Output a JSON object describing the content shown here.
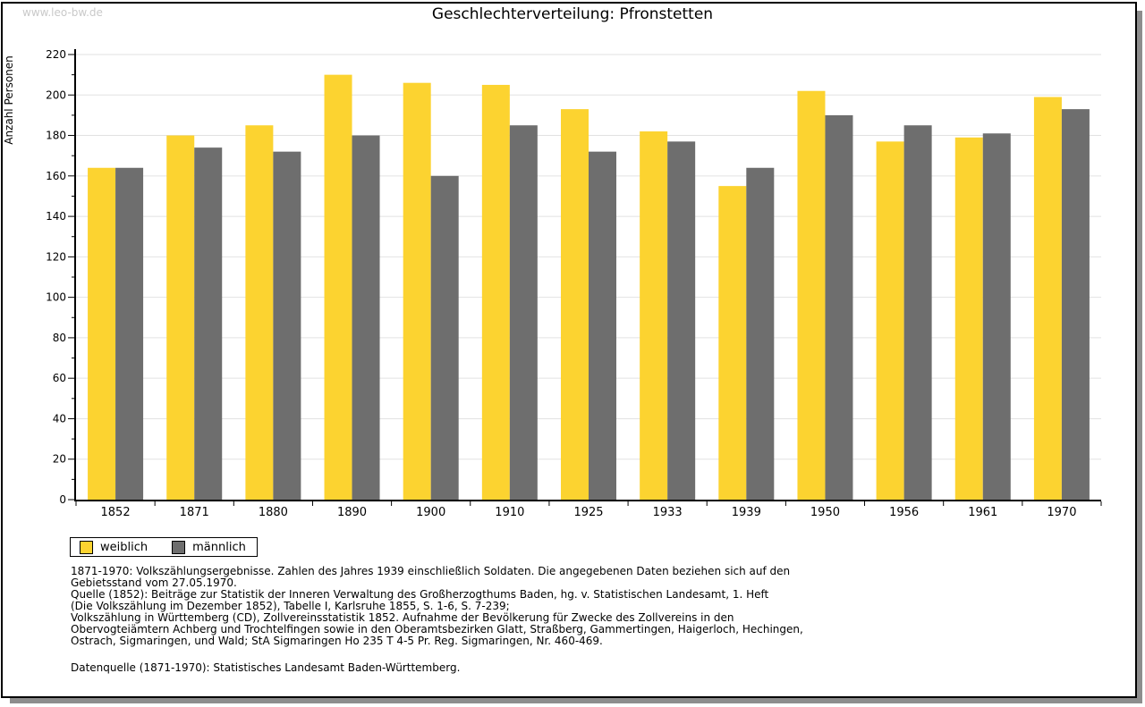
{
  "watermark": "www.leo-bw.de",
  "header": {
    "title": "Geschlechterverteilung: Pfronstetten"
  },
  "chart_data": {
    "type": "bar",
    "title": "Geschlechterverteilung: Pfronstetten",
    "xlabel": "",
    "ylabel": "Anzahl Personen",
    "categories": [
      "1852",
      "1871",
      "1880",
      "1890",
      "1900",
      "1910",
      "1925",
      "1933",
      "1939",
      "1950",
      "1956",
      "1961",
      "1970"
    ],
    "series": [
      {
        "name": "weiblich",
        "color": "#FCD330",
        "values": [
          164,
          180,
          185,
          210,
          206,
          205,
          193,
          182,
          155,
          202,
          177,
          179,
          199
        ]
      },
      {
        "name": "männlich",
        "color": "#6E6E6E",
        "values": [
          164,
          174,
          172,
          180,
          160,
          185,
          172,
          177,
          164,
          190,
          185,
          181,
          193
        ]
      }
    ],
    "ylim": [
      0,
      220
    ],
    "yticks": [
      0,
      20,
      40,
      60,
      80,
      100,
      120,
      140,
      160,
      180,
      200,
      220
    ],
    "ytick_step": 20,
    "minor_ytick_step": 10,
    "grid": "horizontal",
    "gridline_color": "#E2E2E2",
    "axis_color": "#000000",
    "legend_position": "bottom-left"
  },
  "footnotes": {
    "lines": [
      "1871-1970: Volkszählungsergebnisse. Zahlen des Jahres 1939 einschließlich Soldaten. Die angegebenen Daten beziehen sich auf den",
      "Gebietsstand vom 27.05.1970.",
      "Quelle (1852): Beiträge zur Statistik der Inneren Verwaltung des Großherzogthums Baden, hg. v. Statistischen Landesamt, 1. Heft",
      "(Die Volkszählung im Dezember 1852), Tabelle I, Karlsruhe 1855, S. 1-6, S. 7-239;",
      "Volkszählung in Württemberg (CD), Zollvereinsstatistik 1852. Aufnahme der Bevölkerung für Zwecke des Zollvereins in den",
      "Obervogteiämtern Achberg und Trochtelfingen sowie in den Oberamtsbezirken Glatt, Straßberg, Gammertingen, Haigerloch, Hechingen,",
      "Ostrach, Sigmaringen, und Wald; StA Sigmaringen Ho 235 T 4-5 Pr. Reg. Sigmaringen, Nr. 460-469."
    ],
    "datasource": "Datenquelle (1871-1970): Statistisches Landesamt Baden-Württemberg."
  },
  "colors": {
    "watermark": "#C9C9C9",
    "frame_border": "#000000",
    "frame_shadow": "#8D8D8D"
  }
}
